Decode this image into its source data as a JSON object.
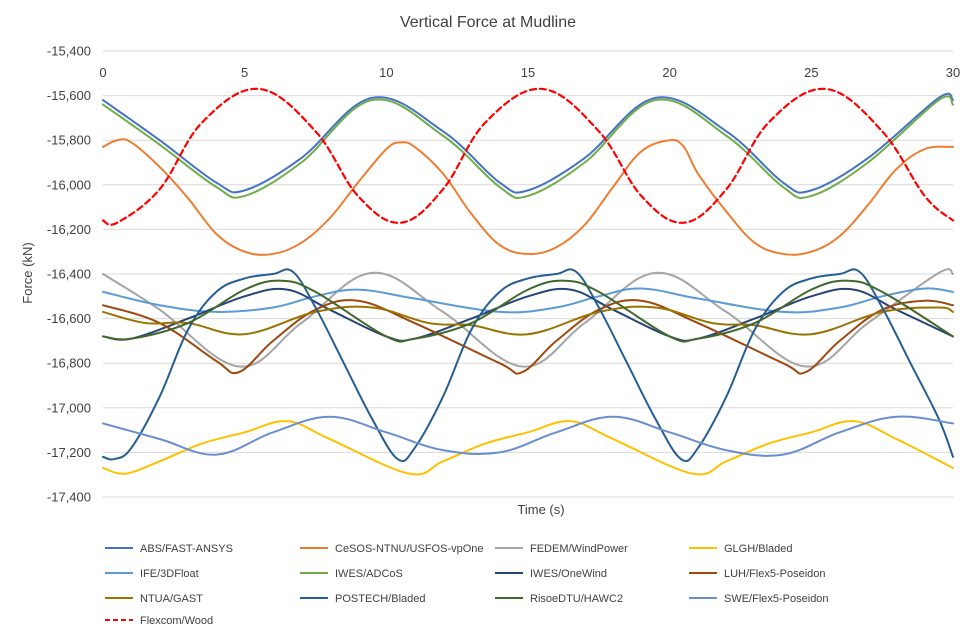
{
  "chart_data": {
    "type": "line",
    "title": "Vertical Force at Mudline",
    "xlabel": "Time (s)",
    "ylabel": "Force (kN)",
    "xlim": [
      0,
      30
    ],
    "ylim": [
      -17400,
      -15400
    ],
    "xticks": [
      0,
      5,
      10,
      15,
      20,
      25,
      30
    ],
    "xtick_labels": [
      "0",
      "5",
      "10",
      "15",
      "20",
      "25",
      "30"
    ],
    "yticks": [
      -15400,
      -15600,
      -15800,
      -16000,
      -16200,
      -16400,
      -16600,
      -16800,
      -17000,
      -17200,
      -17400
    ],
    "ytick_labels": [
      "-15,400",
      "-15,600",
      "-15,800",
      "-16,000",
      "-16,200",
      "-16,400",
      "-16,600",
      "-16,800",
      "-17,000",
      "-17,200",
      "-17,400"
    ],
    "grid": "horizontal",
    "legend_position": "bottom",
    "series": [
      {
        "name": "ABS/FAST-ANSYS",
        "color": "#4472C4",
        "dash": "solid",
        "x": [
          0,
          2,
          4,
          5,
          7,
          9.5,
          12,
          14,
          15,
          17,
          19.5,
          22,
          24,
          25,
          27,
          29.5,
          30
        ],
        "y": [
          -15620,
          -15800,
          -15990,
          -16025,
          -15880,
          -15610,
          -15760,
          -15990,
          -16025,
          -15880,
          -15610,
          -15760,
          -15990,
          -16025,
          -15880,
          -15610,
          -15620
        ]
      },
      {
        "name": "CeSOS-NTNU/USFOS-vpOne",
        "color": "#ED7D31",
        "dash": "solid",
        "x": [
          0,
          0.5,
          1,
          2,
          3,
          4,
          5,
          6,
          7,
          8,
          9,
          10,
          10.5,
          11,
          12,
          13,
          14,
          15,
          16,
          17,
          18,
          19,
          20,
          20.5,
          21,
          22,
          23,
          24,
          25,
          26,
          27,
          28,
          29,
          30
        ],
        "y": [
          -15830,
          -15800,
          -15810,
          -15920,
          -16060,
          -16220,
          -16300,
          -16310,
          -16260,
          -16150,
          -15990,
          -15840,
          -15810,
          -15830,
          -15950,
          -16130,
          -16270,
          -16310,
          -16280,
          -16180,
          -16010,
          -15850,
          -15800,
          -15830,
          -15950,
          -16120,
          -16260,
          -16310,
          -16300,
          -16230,
          -16090,
          -15930,
          -15840,
          -15830
        ]
      },
      {
        "name": "FEDEM/WindPower",
        "color": "#A5A5A5",
        "dash": "solid",
        "x": [
          0,
          2,
          4.8,
          7,
          9.5,
          12,
          14.8,
          17,
          19.5,
          22,
          24.8,
          27,
          29.5,
          30
        ],
        "y": [
          -16400,
          -16560,
          -16815,
          -16620,
          -16395,
          -16570,
          -16815,
          -16620,
          -16395,
          -16570,
          -16815,
          -16620,
          -16395,
          -16400
        ]
      },
      {
        "name": "GLGH/Bladed",
        "color": "#FFC000",
        "dash": "solid",
        "x": [
          0,
          0.8,
          2,
          3.5,
          5,
          6.5,
          8,
          10.8,
          12,
          13.5,
          15,
          16.5,
          18,
          20.8,
          22,
          23.5,
          25,
          26.5,
          28,
          30
        ],
        "y": [
          -17270,
          -17295,
          -17240,
          -17160,
          -17110,
          -17060,
          -17140,
          -17295,
          -17240,
          -17160,
          -17110,
          -17060,
          -17140,
          -17295,
          -17240,
          -17160,
          -17110,
          -17060,
          -17140,
          -17270
        ]
      },
      {
        "name": "IFE/3DFloat",
        "color": "#5B9BD5",
        "dash": "solid",
        "x": [
          0,
          2,
          4,
          6,
          7.5,
          9,
          11,
          14,
          16,
          17.5,
          19,
          21,
          24,
          26,
          27.5,
          29,
          30
        ],
        "y": [
          -16480,
          -16540,
          -16570,
          -16550,
          -16500,
          -16470,
          -16510,
          -16570,
          -16550,
          -16500,
          -16465,
          -16510,
          -16570,
          -16550,
          -16500,
          -16465,
          -16480
        ]
      },
      {
        "name": "IWES/ADCoS",
        "color": "#70AD47",
        "dash": "solid",
        "x": [
          0,
          2,
          4,
          5,
          7,
          9.5,
          12,
          14,
          15,
          17,
          19.5,
          22,
          24,
          25,
          27,
          29.5,
          30
        ],
        "y": [
          -15640,
          -15820,
          -16010,
          -16050,
          -15900,
          -15620,
          -15780,
          -16010,
          -16050,
          -15900,
          -15620,
          -15780,
          -16010,
          -16050,
          -15900,
          -15620,
          -15640
        ]
      },
      {
        "name": "IWES/OneWind",
        "color": "#264478",
        "dash": "solid",
        "x": [
          0,
          1,
          3,
          5,
          6.5,
          8,
          10,
          11,
          13,
          15,
          16.5,
          18,
          20,
          21,
          23,
          25,
          26.5,
          28,
          30
        ],
        "y": [
          -16680,
          -16690,
          -16600,
          -16500,
          -16470,
          -16560,
          -16680,
          -16690,
          -16600,
          -16500,
          -16470,
          -16560,
          -16680,
          -16690,
          -16600,
          -16500,
          -16470,
          -16560,
          -16680
        ]
      },
      {
        "name": "LUH/Flex5-Poseidon",
        "color": "#9E480E",
        "dash": "solid",
        "x": [
          0,
          2,
          4,
          4.8,
          6,
          7.5,
          9,
          11,
          14,
          14.8,
          16,
          17.5,
          19,
          21,
          24,
          24.8,
          26,
          27.5,
          29,
          30
        ],
        "y": [
          -16540,
          -16620,
          -16790,
          -16840,
          -16700,
          -16560,
          -16520,
          -16620,
          -16800,
          -16840,
          -16700,
          -16560,
          -16520,
          -16620,
          -16800,
          -16840,
          -16700,
          -16560,
          -16520,
          -16540
        ]
      },
      {
        "name": "NTUA/GAST",
        "color": "#997300",
        "dash": "solid",
        "x": [
          0,
          1.5,
          3,
          5,
          7.5,
          9.5,
          11.5,
          13,
          15,
          17.5,
          19.5,
          21.5,
          23,
          25,
          27.5,
          29.5,
          30
        ],
        "y": [
          -16570,
          -16620,
          -16620,
          -16670,
          -16570,
          -16550,
          -16620,
          -16630,
          -16670,
          -16570,
          -16550,
          -16620,
          -16630,
          -16670,
          -16570,
          -16550,
          -16570
        ]
      },
      {
        "name": "POSTECH/Bladed",
        "color": "#255E91",
        "dash": "solid",
        "x": [
          0,
          0.4,
          1,
          2,
          3,
          4,
          5,
          6,
          6.7,
          7.5,
          8.5,
          9.5,
          10.4,
          11,
          12,
          13,
          14,
          15,
          16,
          16.7,
          17.5,
          18.5,
          19.5,
          20.4,
          21,
          22,
          23,
          24,
          25,
          26,
          26.7,
          27.5,
          28.5,
          29.5,
          30
        ],
        "y": [
          -17220,
          -17230,
          -17180,
          -16950,
          -16650,
          -16480,
          -16420,
          -16400,
          -16390,
          -16550,
          -16800,
          -17050,
          -17230,
          -17180,
          -16950,
          -16650,
          -16480,
          -16420,
          -16400,
          -16390,
          -16550,
          -16800,
          -17050,
          -17230,
          -17180,
          -16950,
          -16650,
          -16480,
          -16420,
          -16400,
          -16390,
          -16550,
          -16800,
          -17050,
          -17220
        ]
      },
      {
        "name": "RisoeDTU/HAWC2",
        "color": "#43682B",
        "dash": "solid",
        "x": [
          0,
          1,
          3,
          5,
          6.3,
          7.5,
          10,
          11,
          13,
          15,
          16.3,
          17.5,
          20,
          21,
          23,
          25,
          26.3,
          27.5,
          30
        ],
        "y": [
          -16680,
          -16690,
          -16620,
          -16470,
          -16430,
          -16480,
          -16680,
          -16690,
          -16620,
          -16470,
          -16430,
          -16480,
          -16680,
          -16690,
          -16620,
          -16470,
          -16430,
          -16480,
          -16680
        ]
      },
      {
        "name": "SWE/Flex5-Poseidon",
        "color": "#698ED0",
        "dash": "solid",
        "x": [
          0,
          2,
          4,
          6,
          8,
          10,
          12,
          14,
          16,
          18,
          20,
          22,
          24,
          26,
          28,
          30
        ],
        "y": [
          -17070,
          -17140,
          -17210,
          -17110,
          -17040,
          -17110,
          -17190,
          -17200,
          -17110,
          -17040,
          -17110,
          -17190,
          -17210,
          -17110,
          -17040,
          -17070
        ]
      },
      {
        "name": "Flexcom/Wood",
        "color": "#FF0000",
        "dash": "dashed",
        "x": [
          0,
          0.5,
          2,
          3.5,
          5.5,
          7.5,
          9,
          10.5,
          12,
          13.5,
          15.5,
          17.5,
          19,
          20.5,
          22,
          23.5,
          25.5,
          27.5,
          29,
          30
        ],
        "y": [
          -16160,
          -16170,
          -16020,
          -15720,
          -15570,
          -15760,
          -16050,
          -16170,
          -16020,
          -15720,
          -15570,
          -15760,
          -16050,
          -16170,
          -16020,
          -15720,
          -15570,
          -15760,
          -16050,
          -16160
        ]
      }
    ]
  }
}
